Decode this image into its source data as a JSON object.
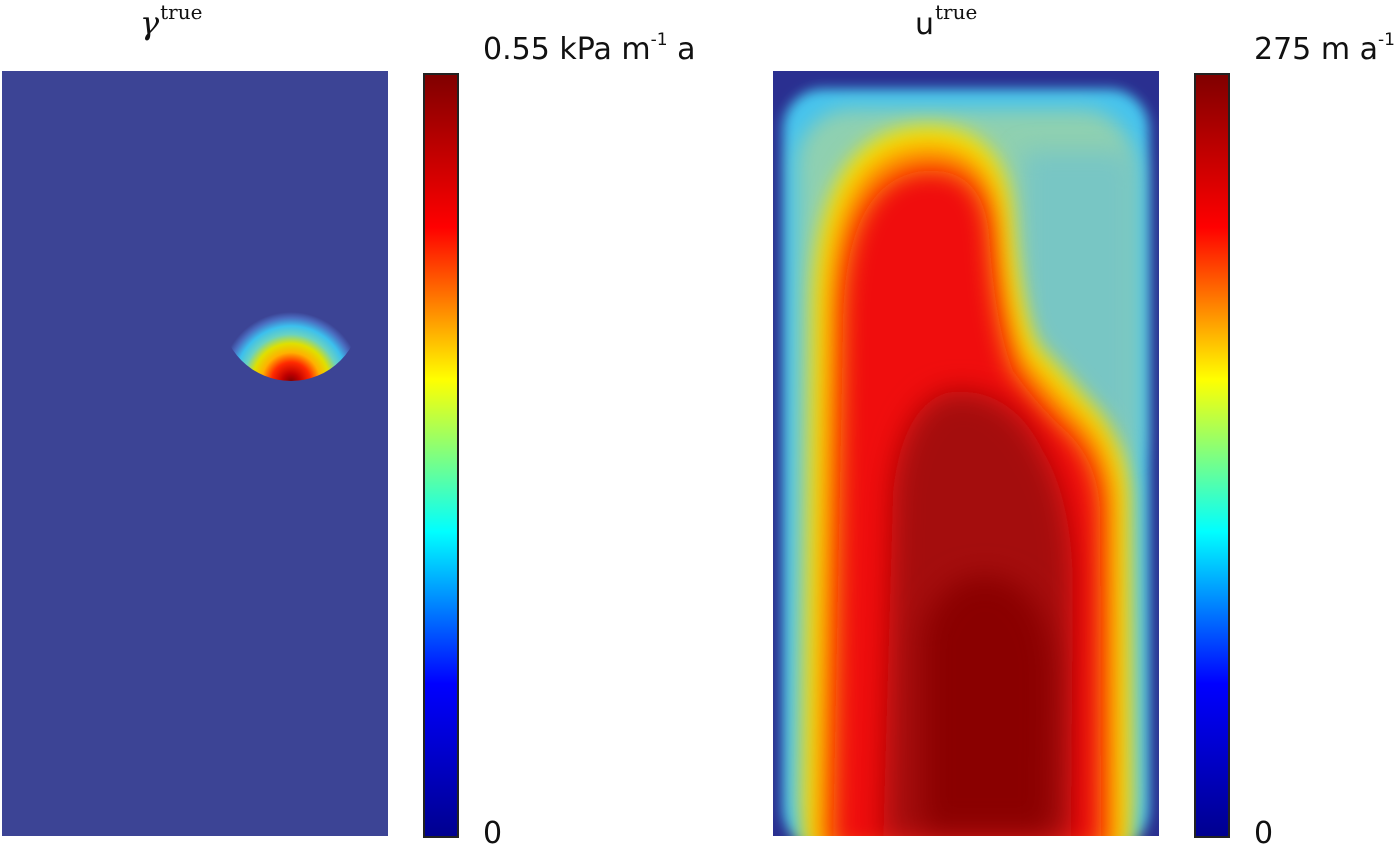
{
  "colormap": [
    "#00008f",
    "#0000ff",
    "#00ffff",
    "#ffff00",
    "#ff0000",
    "#800000"
  ],
  "background_field_color": "#3c4495",
  "chart_data": [
    {
      "type": "heatmap",
      "title_symbol": "γ",
      "title_sup": "true",
      "colorbar": {
        "max_value": "0.55",
        "max_unit_a": "kPa m",
        "max_unit_sup": "-1",
        "max_unit_b": "a",
        "min_label": "0",
        "range": [
          0,
          0.55
        ]
      },
      "features": {
        "background_level": 0.0,
        "peak": {
          "value": 0.55,
          "shape": "circular gaussian bump",
          "location": "upper-right of domain"
        }
      }
    },
    {
      "type": "heatmap",
      "title_symbol": "u",
      "title_sup": "true",
      "colorbar": {
        "max_value": "275",
        "max_unit_a": "m a",
        "max_unit_sup": "-1",
        "max_unit_b": "",
        "min_label": "0",
        "range": [
          0,
          275
        ]
      },
      "features": {
        "edges_level": 0,
        "core_level": 275,
        "recessed_region_level": 120,
        "description": "high velocity core, low near boundaries, recess in upper right"
      }
    }
  ]
}
